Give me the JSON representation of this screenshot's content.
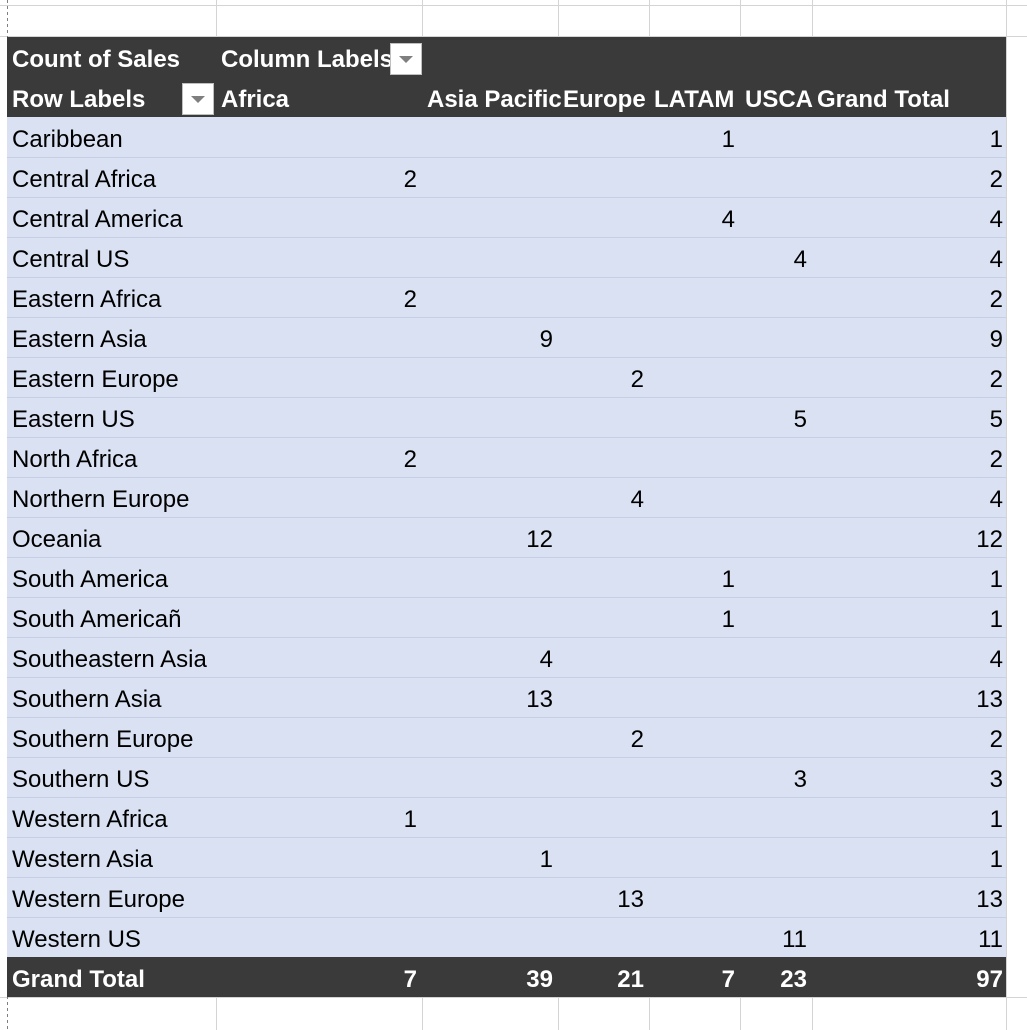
{
  "pivot": {
    "header": {
      "value_label": "Count of Sales",
      "column_labels": "Column Labels",
      "row_labels": "Row Labels",
      "columns": [
        "Africa",
        "Asia Pacific",
        "Europe",
        "LATAM",
        "USCA",
        "Grand Total"
      ]
    },
    "rows": [
      {
        "label": "Caribbean",
        "africa": "",
        "asia_pacific": "",
        "europe": "",
        "latam": "1",
        "usca": "",
        "grand_total": "1"
      },
      {
        "label": "Central Africa",
        "africa": "2",
        "asia_pacific": "",
        "europe": "",
        "latam": "",
        "usca": "",
        "grand_total": "2"
      },
      {
        "label": "Central America",
        "africa": "",
        "asia_pacific": "",
        "europe": "",
        "latam": "4",
        "usca": "",
        "grand_total": "4"
      },
      {
        "label": "Central US",
        "africa": "",
        "asia_pacific": "",
        "europe": "",
        "latam": "",
        "usca": "4",
        "grand_total": "4"
      },
      {
        "label": "Eastern Africa",
        "africa": "2",
        "asia_pacific": "",
        "europe": "",
        "latam": "",
        "usca": "",
        "grand_total": "2"
      },
      {
        "label": "Eastern Asia",
        "africa": "",
        "asia_pacific": "9",
        "europe": "",
        "latam": "",
        "usca": "",
        "grand_total": "9"
      },
      {
        "label": "Eastern Europe",
        "africa": "",
        "asia_pacific": "",
        "europe": "2",
        "latam": "",
        "usca": "",
        "grand_total": "2"
      },
      {
        "label": "Eastern US",
        "africa": "",
        "asia_pacific": "",
        "europe": "",
        "latam": "",
        "usca": "5",
        "grand_total": "5"
      },
      {
        "label": "North Africa",
        "africa": "2",
        "asia_pacific": "",
        "europe": "",
        "latam": "",
        "usca": "",
        "grand_total": "2"
      },
      {
        "label": "Northern Europe",
        "africa": "",
        "asia_pacific": "",
        "europe": "4",
        "latam": "",
        "usca": "",
        "grand_total": "4"
      },
      {
        "label": "Oceania",
        "africa": "",
        "asia_pacific": "12",
        "europe": "",
        "latam": "",
        "usca": "",
        "grand_total": "12"
      },
      {
        "label": "South America",
        "africa": "",
        "asia_pacific": "",
        "europe": "",
        "latam": "1",
        "usca": "",
        "grand_total": "1"
      },
      {
        "label": "South Americañ",
        "africa": "",
        "asia_pacific": "",
        "europe": "",
        "latam": "1",
        "usca": "",
        "grand_total": "1"
      },
      {
        "label": "Southeastern Asia",
        "africa": "",
        "asia_pacific": "4",
        "europe": "",
        "latam": "",
        "usca": "",
        "grand_total": "4"
      },
      {
        "label": "Southern Asia",
        "africa": "",
        "asia_pacific": "13",
        "europe": "",
        "latam": "",
        "usca": "",
        "grand_total": "13"
      },
      {
        "label": "Southern Europe",
        "africa": "",
        "asia_pacific": "",
        "europe": "2",
        "latam": "",
        "usca": "",
        "grand_total": "2"
      },
      {
        "label": "Southern US",
        "africa": "",
        "asia_pacific": "",
        "europe": "",
        "latam": "",
        "usca": "3",
        "grand_total": "3"
      },
      {
        "label": "Western Africa",
        "africa": "1",
        "asia_pacific": "",
        "europe": "",
        "latam": "",
        "usca": "",
        "grand_total": "1"
      },
      {
        "label": "Western Asia",
        "africa": "",
        "asia_pacific": "1",
        "europe": "",
        "latam": "",
        "usca": "",
        "grand_total": "1"
      },
      {
        "label": "Western Europe",
        "africa": "",
        "asia_pacific": "",
        "europe": "13",
        "latam": "",
        "usca": "",
        "grand_total": "13"
      },
      {
        "label": "Western US",
        "africa": "",
        "asia_pacific": "",
        "europe": "",
        "latam": "",
        "usca": "11",
        "grand_total": "11"
      }
    ],
    "grand_total": {
      "label": "Grand Total",
      "africa": "7",
      "asia_pacific": "39",
      "europe": "21",
      "latam": "7",
      "usca": "23",
      "grand_total": "97"
    }
  },
  "colors": {
    "header_bg": "#3a3a3a",
    "body_bg": "#d9e1f2",
    "grid": "#d4d4d4"
  },
  "icons": {
    "column_filter": "filter-dropdown-icon",
    "row_filter": "filter-dropdown-icon"
  }
}
